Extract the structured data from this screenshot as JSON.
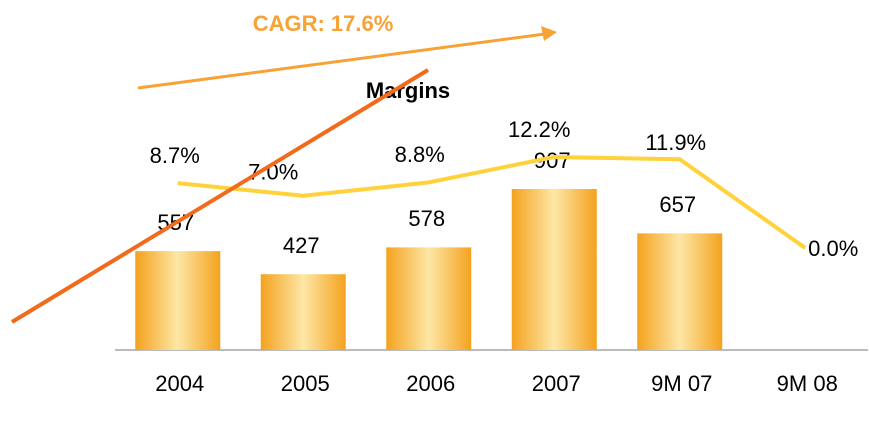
{
  "chart_data": {
    "type": "bar",
    "title": "Margins",
    "annotation": "CAGR: 17.6%",
    "categories": [
      "2004",
      "2005",
      "2006",
      "2007",
      "9M 07",
      "9M 08"
    ],
    "series": [
      {
        "type": "bar",
        "color": "#f5a320",
        "values": [
          557,
          427,
          578,
          907,
          657,
          null
        ]
      },
      {
        "type": "line",
        "color": "#ffd23c",
        "values": [
          8.7,
          7.0,
          8.8,
          12.2,
          11.9,
          0.0
        ],
        "value_labels": [
          "8.7%",
          "7.0%",
          "8.8%",
          "12.2%",
          "11.9%",
          "0.0%"
        ]
      }
    ]
  }
}
